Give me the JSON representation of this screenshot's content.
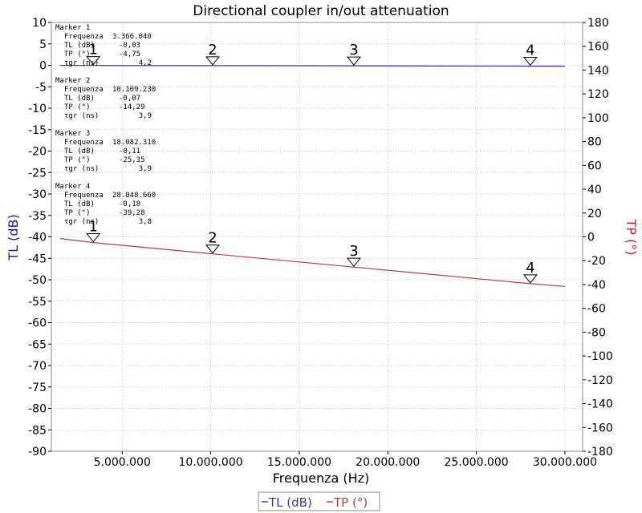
{
  "chart_data": {
    "type": "line",
    "title": "Directional coupler in/out attenuation",
    "xlabel": "Frequenza (Hz)",
    "ylabel_left": "TL (dB)",
    "ylabel_right": "TP (°)",
    "xlim": [
      1000000,
      31000000
    ],
    "ylim_left": [
      -90,
      10
    ],
    "ylim_right": [
      -180,
      180
    ],
    "x_ticks": [
      5000000,
      10000000,
      15000000,
      20000000,
      25000000,
      30000000
    ],
    "x_tick_labels": [
      "5.000.000",
      "10.000.000",
      "15.000.000",
      "20.000.000",
      "25.000.000",
      "30.000.000"
    ],
    "y_left_ticks": [
      10,
      5,
      0,
      -5,
      -10,
      -15,
      -20,
      -25,
      -30,
      -35,
      -40,
      -45,
      -50,
      -55,
      -60,
      -65,
      -70,
      -75,
      -80,
      -85,
      -90
    ],
    "y_right_ticks": [
      180,
      160,
      140,
      120,
      100,
      80,
      60,
      40,
      20,
      0,
      -20,
      -40,
      -60,
      -80,
      -100,
      -120,
      -140,
      -160,
      -180
    ],
    "grid": true,
    "legend_position": "bottom-center",
    "series": [
      {
        "name": "TL (dB)",
        "axis": "left",
        "color": "#3a3aa0",
        "x": [
          1500000,
          3366040,
          10109230,
          18082310,
          28048660,
          30000000
        ],
        "y": [
          -0.02,
          -0.03,
          -0.07,
          -0.11,
          -0.18,
          -0.19
        ]
      },
      {
        "name": "TP (°)",
        "axis": "right",
        "color": "#b04040",
        "x": [
          1500000,
          3366040,
          10109230,
          18082310,
          28048660,
          30000000
        ],
        "y": [
          -1.4,
          -4.75,
          -14.29,
          -25.35,
          -39.28,
          -41.6
        ]
      }
    ],
    "markers": [
      {
        "number": "1",
        "header": "Marker 1",
        "freq_label": "Frequenza",
        "freq_value": "3.366.040",
        "tl_label": "TL (dB)",
        "tl_value": "-0,03",
        "tp_label": "TP (°)",
        "tp_value": "-4,75",
        "tgr_label": "τgr (ns)",
        "tgr_value": "4,2",
        "x": 3366040,
        "tl": -0.03,
        "tp": -4.75
      },
      {
        "number": "2",
        "header": "Marker 2",
        "freq_label": "Frequenza",
        "freq_value": "10.109.230",
        "tl_label": "TL (dB)",
        "tl_value": "-0,07",
        "tp_label": "TP (°)",
        "tp_value": "-14,29",
        "tgr_label": "τgr (ns)",
        "tgr_value": "3,9",
        "x": 10109230,
        "tl": -0.07,
        "tp": -14.29
      },
      {
        "number": "3",
        "header": "Marker 3",
        "freq_label": "Frequenza",
        "freq_value": "18.082.310",
        "tl_label": "TL (dB)",
        "tl_value": "-0,11",
        "tp_label": "TP (°)",
        "tp_value": "-25,35",
        "tgr_label": "τgr (ns)",
        "tgr_value": "3,9",
        "x": 18082310,
        "tl": -0.11,
        "tp": -25.35
      },
      {
        "number": "4",
        "header": "Marker 4",
        "freq_label": "Frequenza",
        "freq_value": "28.048.660",
        "tl_label": "TL (dB)",
        "tl_value": "-0,18",
        "tp_label": "TP (°)",
        "tp_value": "-39,28",
        "tgr_label": "τgr (ns)",
        "tgr_value": "3,8",
        "x": 28048660,
        "tl": -0.18,
        "tp": -39.28
      }
    ]
  }
}
